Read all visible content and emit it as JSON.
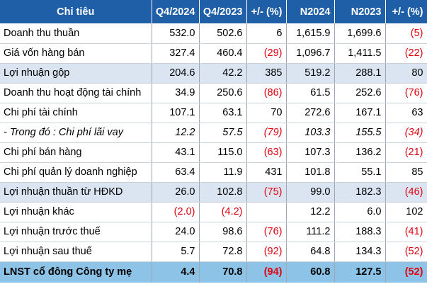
{
  "header": [
    "Chỉ tiêu",
    "Q4/2024",
    "Q4/2023",
    "+/- (%)",
    "N2024",
    "N2023",
    "+/- (%)"
  ],
  "rows": [
    {
      "label": "Doanh thu thuần",
      "cells": [
        "532.0",
        "502.6",
        "6",
        "1,615.9",
        "1,699.6",
        "(5)"
      ],
      "neg": [
        false,
        false,
        false,
        false,
        false,
        true
      ],
      "style": "normal"
    },
    {
      "label": "Giá vốn hàng bán",
      "cells": [
        "327.4",
        "460.4",
        "(29)",
        "1,096.7",
        "1,411.5",
        "(22)"
      ],
      "neg": [
        false,
        false,
        true,
        false,
        false,
        true
      ],
      "style": "normal"
    },
    {
      "label": "Lợi nhuận gộp",
      "cells": [
        "204.6",
        "42.2",
        "385",
        "519.2",
        "288.1",
        "80"
      ],
      "neg": [
        false,
        false,
        false,
        false,
        false,
        false
      ],
      "style": "highlight"
    },
    {
      "label": "Doanh thu hoạt động tài chính",
      "cells": [
        "34.9",
        "250.6",
        "(86)",
        "61.5",
        "252.6",
        "(76)"
      ],
      "neg": [
        false,
        false,
        true,
        false,
        false,
        true
      ],
      "style": "normal"
    },
    {
      "label": "Chi phí tài chính",
      "cells": [
        "107.1",
        "63.1",
        "70",
        "272.6",
        "167.1",
        "63"
      ],
      "neg": [
        false,
        false,
        false,
        false,
        false,
        false
      ],
      "style": "normal"
    },
    {
      "label": "- Trong đó : Chi phí lãi vay",
      "cells": [
        "12.2",
        "57.5",
        "(79)",
        "103.3",
        "155.5",
        "(34)"
      ],
      "neg": [
        false,
        false,
        true,
        false,
        false,
        true
      ],
      "style": "italic"
    },
    {
      "label": "Chi phí bán hàng",
      "cells": [
        "43.1",
        "115.0",
        "(63)",
        "107.3",
        "136.2",
        "(21)"
      ],
      "neg": [
        false,
        false,
        true,
        false,
        false,
        true
      ],
      "style": "normal"
    },
    {
      "label": "Chi phí quản lý doanh nghiệp",
      "cells": [
        "63.4",
        "11.9",
        "431",
        "101.8",
        "55.1",
        "85"
      ],
      "neg": [
        false,
        false,
        false,
        false,
        false,
        false
      ],
      "style": "normal"
    },
    {
      "label": "Lợi nhuận thuần từ HĐKD",
      "cells": [
        "26.0",
        "102.8",
        "(75)",
        "99.0",
        "182.3",
        "(46)"
      ],
      "neg": [
        false,
        false,
        true,
        false,
        false,
        true
      ],
      "style": "highlight"
    },
    {
      "label": "Lợi nhuận khác",
      "cells": [
        "(2.0)",
        "(4.2)",
        "",
        "12.2",
        "6.0",
        "102"
      ],
      "neg": [
        true,
        true,
        false,
        false,
        false,
        false
      ],
      "style": "normal"
    },
    {
      "label": "Lợi nhuận trước thuế",
      "cells": [
        "24.0",
        "98.6",
        "(76)",
        "111.2",
        "188.3",
        "(41)"
      ],
      "neg": [
        false,
        false,
        true,
        false,
        false,
        true
      ],
      "style": "normal"
    },
    {
      "label": "Lợi nhuận sau thuế",
      "cells": [
        "5.7",
        "72.8",
        "(92)",
        "64.8",
        "134.3",
        "(52)"
      ],
      "neg": [
        false,
        false,
        true,
        false,
        false,
        true
      ],
      "style": "normal"
    },
    {
      "label": "LNST cổ đông Công ty mẹ",
      "cells": [
        "4.4",
        "70.8",
        "(94)",
        "60.8",
        "127.5",
        "(52)"
      ],
      "neg": [
        false,
        false,
        true,
        false,
        false,
        true
      ],
      "style": "total"
    }
  ],
  "colors": {
    "header_bg": "#1f5fa8",
    "highlight_bg": "#dbe5f1",
    "total_bg": "#8dc3e6",
    "negative": "#e3000f"
  }
}
